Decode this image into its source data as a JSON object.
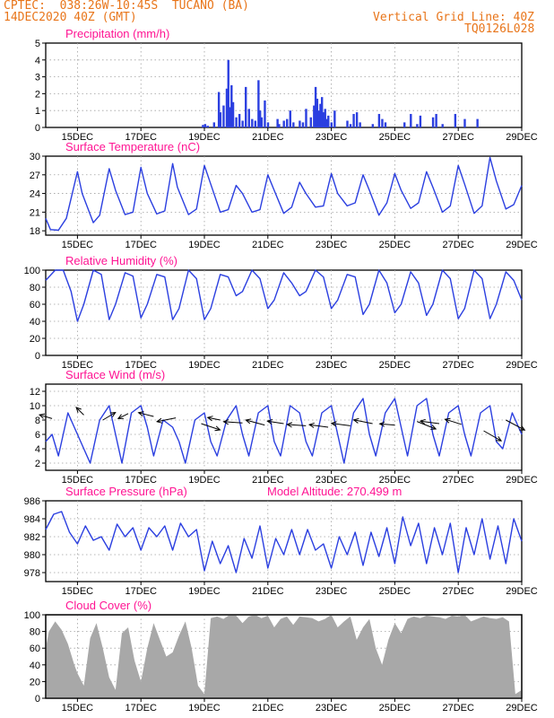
{
  "header": {
    "station": "CPTEC:  038:26W-10:45S  TUCANO (BA)",
    "date": "14DEC2020 40Z (GMT)",
    "grid_note": "Vertical Grid Line: 40Z",
    "code": "TQ0126L028"
  },
  "colors": {
    "accent": "#e8751a",
    "title": "#ff1493",
    "series": "#2b3fe0",
    "cloud": "#a8a8a8",
    "grid": "#a0a0a0"
  },
  "x_axis": {
    "day_start": 14.0,
    "day_end": 29.0,
    "tick_days": [
      15,
      17,
      19,
      21,
      23,
      25,
      27,
      29
    ],
    "tick_labels": [
      "15DEC",
      "17DEC",
      "19DEC",
      "21DEC",
      "23DEC",
      "25DEC",
      "27DEC",
      "29DEC"
    ]
  },
  "chart_data": [
    {
      "id": "precip",
      "type": "bar",
      "title": "Precipitation (mm/h)",
      "ylim": [
        0,
        5
      ],
      "yticks": [
        0,
        1,
        2,
        3,
        4,
        5
      ],
      "x_days": [
        18.95,
        19.02,
        19.1,
        19.3,
        19.45,
        19.5,
        19.6,
        19.7,
        19.75,
        19.8,
        19.85,
        19.9,
        20.0,
        20.1,
        20.2,
        20.3,
        20.4,
        20.5,
        20.6,
        20.7,
        20.75,
        20.8,
        20.9,
        21.0,
        21.3,
        21.35,
        21.5,
        21.6,
        21.7,
        21.8,
        22.0,
        22.1,
        22.2,
        22.35,
        22.45,
        22.5,
        22.55,
        22.6,
        22.65,
        22.7,
        22.75,
        22.8,
        22.85,
        22.9,
        23.0,
        23.1,
        23.5,
        23.6,
        23.7,
        23.8,
        23.9,
        24.3,
        24.5,
        24.6,
        24.7,
        25.3,
        25.5,
        25.7,
        25.8,
        26.2,
        26.3,
        26.5,
        26.9,
        27.2,
        27.6
      ],
      "values": [
        0.15,
        0.2,
        0.1,
        0.3,
        2.1,
        0.9,
        1.3,
        2.3,
        4.0,
        1.2,
        2.5,
        1.5,
        0.6,
        0.8,
        0.4,
        2.4,
        1.1,
        0.5,
        0.4,
        2.8,
        1.0,
        0.6,
        1.6,
        0.3,
        0.5,
        0.2,
        0.4,
        0.5,
        1.0,
        0.3,
        0.4,
        0.3,
        1.1,
        0.6,
        1.3,
        2.4,
        1.7,
        1.0,
        1.4,
        1.8,
        0.9,
        1.1,
        0.5,
        0.7,
        0.3,
        1.0,
        0.4,
        0.2,
        0.8,
        0.9,
        0.3,
        0.2,
        0.8,
        0.5,
        0.3,
        0.3,
        0.8,
        0.2,
        0.7,
        0.6,
        0.8,
        0.2,
        0.8,
        0.5,
        0.5
      ]
    },
    {
      "id": "temp",
      "type": "line",
      "title": "Surface Temperature (nC)",
      "ylim": [
        17.3,
        30
      ],
      "yticks": [
        18,
        21,
        24,
        27,
        30
      ],
      "x_days": [
        14.0,
        14.15,
        14.4,
        14.65,
        15.0,
        15.15,
        15.5,
        15.7,
        16.0,
        16.2,
        16.5,
        16.75,
        17.0,
        17.2,
        17.5,
        17.75,
        18.0,
        18.15,
        18.5,
        18.75,
        19.0,
        19.2,
        19.5,
        19.75,
        20.0,
        20.2,
        20.5,
        20.75,
        21.0,
        21.2,
        21.5,
        21.75,
        22.0,
        22.2,
        22.5,
        22.75,
        23.0,
        23.2,
        23.5,
        23.75,
        24.0,
        24.2,
        24.5,
        24.75,
        25.0,
        25.2,
        25.5,
        25.75,
        26.0,
        26.2,
        26.5,
        26.75,
        27.0,
        27.2,
        27.5,
        27.75,
        28.0,
        28.2,
        28.5,
        28.75,
        29.0
      ],
      "values": [
        20.0,
        18.2,
        18.1,
        20.0,
        27.5,
        24.0,
        19.3,
        20.5,
        28.0,
        24.5,
        20.6,
        21.0,
        28.2,
        24.0,
        20.7,
        21.2,
        28.8,
        25.0,
        20.6,
        21.5,
        28.5,
        25.5,
        21.0,
        21.4,
        25.3,
        24.0,
        21.0,
        21.4,
        27.0,
        24.5,
        20.8,
        21.8,
        25.8,
        24.0,
        21.8,
        22.0,
        27.2,
        24.0,
        22.0,
        22.5,
        27.0,
        24.5,
        20.5,
        22.5,
        27.2,
        24.5,
        21.6,
        22.5,
        27.5,
        25.0,
        21.0,
        22.0,
        28.5,
        25.5,
        20.8,
        22.0,
        29.8,
        26.0,
        21.5,
        22.2,
        25.3
      ]
    },
    {
      "id": "rh",
      "type": "line",
      "title": "Relative Humidity (%)",
      "ylim": [
        0,
        100
      ],
      "yticks": [
        0,
        20,
        40,
        60,
        80,
        100
      ],
      "x_days": [
        14.0,
        14.3,
        14.55,
        14.8,
        15.0,
        15.2,
        15.5,
        15.75,
        16.0,
        16.2,
        16.5,
        16.75,
        17.0,
        17.2,
        17.5,
        17.75,
        18.0,
        18.2,
        18.5,
        18.75,
        19.0,
        19.2,
        19.5,
        19.75,
        20.0,
        20.2,
        20.5,
        20.75,
        21.0,
        21.2,
        21.5,
        21.75,
        22.0,
        22.2,
        22.5,
        22.75,
        23.0,
        23.2,
        23.5,
        23.75,
        24.0,
        24.2,
        24.5,
        24.75,
        25.0,
        25.2,
        25.5,
        25.75,
        26.0,
        26.2,
        26.5,
        26.75,
        27.0,
        27.2,
        27.5,
        27.75,
        28.0,
        28.2,
        28.5,
        28.75,
        29.0
      ],
      "values": [
        88,
        100,
        100,
        75,
        40,
        60,
        100,
        95,
        42,
        60,
        97,
        93,
        44,
        60,
        95,
        92,
        42,
        55,
        100,
        90,
        42,
        55,
        95,
        92,
        70,
        75,
        100,
        90,
        55,
        65,
        97,
        85,
        70,
        75,
        100,
        92,
        55,
        65,
        95,
        92,
        48,
        60,
        100,
        85,
        50,
        60,
        98,
        85,
        47,
        60,
        100,
        90,
        43,
        55,
        100,
        90,
        43,
        60,
        98,
        88,
        65
      ]
    },
    {
      "id": "wind",
      "type": "line",
      "title": "Surface Wind (m/s)",
      "ylim": [
        1,
        13
      ],
      "yticks": [
        2,
        4,
        6,
        8,
        10,
        12
      ],
      "x_days": [
        14.0,
        14.2,
        14.4,
        14.7,
        15.0,
        15.2,
        15.4,
        15.7,
        16.0,
        16.2,
        16.4,
        16.7,
        17.0,
        17.2,
        17.4,
        17.7,
        18.0,
        18.2,
        18.4,
        18.7,
        19.0,
        19.2,
        19.4,
        19.7,
        20.0,
        20.2,
        20.4,
        20.7,
        21.0,
        21.2,
        21.4,
        21.7,
        22.0,
        22.2,
        22.4,
        22.7,
        23.0,
        23.2,
        23.4,
        23.7,
        24.0,
        24.2,
        24.4,
        24.7,
        25.0,
        25.2,
        25.4,
        25.7,
        26.0,
        26.2,
        26.4,
        26.7,
        27.0,
        27.2,
        27.4,
        27.7,
        28.0,
        28.2,
        28.4,
        28.7,
        29.0
      ],
      "values": [
        5,
        6,
        3,
        9,
        6,
        4,
        2,
        8,
        10,
        6,
        2,
        9,
        10,
        7,
        3,
        8,
        7,
        5,
        2,
        8,
        9,
        5,
        3,
        8,
        10,
        6,
        3,
        9,
        10,
        5,
        3,
        10,
        9,
        5,
        3,
        9,
        10,
        6,
        2,
        9,
        11,
        6,
        3,
        9,
        11,
        7,
        3,
        10,
        11,
        6,
        3,
        9,
        10,
        6,
        3,
        9,
        10,
        5,
        4,
        9,
        6
      ],
      "arrows": {
        "x_days": [
          14.2,
          15.2,
          15.8,
          16.6,
          17.4,
          18.1,
          18.9,
          19.5,
          20.2,
          20.9,
          21.5,
          22.2,
          22.9,
          23.6,
          24.3,
          25.0,
          25.7,
          26.4,
          27.1,
          27.8,
          28.5
        ],
        "y": [
          8.2,
          8.7,
          8.0,
          8.9,
          8.5,
          8.3,
          7.5,
          8.0,
          7.6,
          7.3,
          7.5,
          7.2,
          7.0,
          7.2,
          7.5,
          7.3,
          7.8,
          7.5,
          7.4,
          6.5,
          8.0
        ],
        "u": [
          -1.0,
          -0.6,
          1.0,
          -0.8,
          -1.2,
          -1.5,
          1.5,
          -1.0,
          -1.5,
          -1.5,
          -1.3,
          -1.5,
          -1.5,
          -1.5,
          -1.5,
          -1.2,
          1.5,
          -1.5,
          -1.3,
          1.4,
          1.5
        ],
        "v": [
          0.3,
          0.6,
          0.6,
          -0.4,
          0.3,
          -0.3,
          -0.5,
          0.2,
          0.1,
          0.4,
          0.2,
          0.1,
          0.2,
          0.2,
          0.3,
          0.1,
          -0.6,
          0.2,
          0.4,
          -0.8,
          -0.8
        ]
      }
    },
    {
      "id": "press",
      "type": "line",
      "title": "Surface Pressure (hPa)",
      "subtitle": "Model Altitude: 270.499 m",
      "ylim": [
        977,
        986
      ],
      "yticks": [
        978,
        980,
        982,
        984,
        986
      ],
      "x_days": [
        14.0,
        14.25,
        14.5,
        14.75,
        15.0,
        15.25,
        15.5,
        15.75,
        16.0,
        16.25,
        16.5,
        16.75,
        17.0,
        17.25,
        17.5,
        17.75,
        18.0,
        18.25,
        18.5,
        18.75,
        19.0,
        19.25,
        19.5,
        19.75,
        20.0,
        20.25,
        20.5,
        20.75,
        21.0,
        21.25,
        21.5,
        21.75,
        22.0,
        22.25,
        22.5,
        22.75,
        23.0,
        23.25,
        23.5,
        23.75,
        24.0,
        24.25,
        24.5,
        24.75,
        25.0,
        25.25,
        25.5,
        25.75,
        26.0,
        26.25,
        26.5,
        26.75,
        27.0,
        27.25,
        27.5,
        27.75,
        28.0,
        28.25,
        28.5,
        28.75,
        29.0
      ],
      "values": [
        982.8,
        984.5,
        984.8,
        982.5,
        981.2,
        983.2,
        981.6,
        982.0,
        980.5,
        983.4,
        982.0,
        983.0,
        980.5,
        983.0,
        982.0,
        983.2,
        980.5,
        983.5,
        982.0,
        982.8,
        978.2,
        981.5,
        979.0,
        981.0,
        978.0,
        981.8,
        979.6,
        983.2,
        978.5,
        981.8,
        980.0,
        982.8,
        980.0,
        982.8,
        980.5,
        981.2,
        978.5,
        982.0,
        980.0,
        982.5,
        978.8,
        982.5,
        979.8,
        983.0,
        979.0,
        984.2,
        981.0,
        983.5,
        979.0,
        983.0,
        980.0,
        983.5,
        978.0,
        983.0,
        980.0,
        984.0,
        979.5,
        983.2,
        979.0,
        984.0,
        981.5
      ]
    },
    {
      "id": "cloud",
      "type": "area",
      "title": "Cloud Cover (%)",
      "ylim": [
        0,
        100
      ],
      "yticks": [
        0,
        20,
        40,
        60,
        80,
        100
      ],
      "x_days": [
        14.0,
        14.1,
        14.3,
        14.5,
        14.7,
        14.9,
        15.0,
        15.2,
        15.4,
        15.6,
        15.8,
        16.0,
        16.2,
        16.4,
        16.6,
        16.8,
        17.0,
        17.2,
        17.4,
        17.6,
        17.8,
        18.0,
        18.2,
        18.4,
        18.6,
        18.8,
        19.0,
        19.2,
        19.4,
        19.6,
        19.8,
        20.0,
        20.2,
        20.4,
        20.6,
        20.8,
        21.0,
        21.2,
        21.4,
        21.6,
        21.8,
        22.0,
        22.2,
        22.4,
        22.6,
        22.8,
        23.0,
        23.2,
        23.4,
        23.6,
        23.8,
        24.0,
        24.2,
        24.4,
        24.6,
        24.8,
        25.0,
        25.2,
        25.4,
        25.6,
        25.8,
        26.0,
        26.2,
        26.4,
        26.6,
        26.8,
        27.0,
        27.2,
        27.4,
        27.6,
        27.8,
        28.0,
        28.2,
        28.4,
        28.6,
        28.8,
        29.0
      ],
      "values": [
        60,
        80,
        92,
        82,
        65,
        40,
        30,
        15,
        72,
        90,
        60,
        25,
        10,
        78,
        85,
        45,
        20,
        60,
        90,
        70,
        50,
        55,
        75,
        92,
        60,
        15,
        5,
        96,
        98,
        95,
        100,
        99,
        90,
        98,
        100,
        96,
        99,
        85,
        95,
        98,
        88,
        98,
        97,
        96,
        92,
        95,
        100,
        85,
        92,
        98,
        70,
        85,
        95,
        60,
        40,
        70,
        90,
        78,
        95,
        98,
        96,
        99,
        98,
        97,
        95,
        99,
        98,
        100,
        92,
        95,
        98,
        96,
        95,
        97,
        92,
        5,
        10
      ]
    }
  ]
}
